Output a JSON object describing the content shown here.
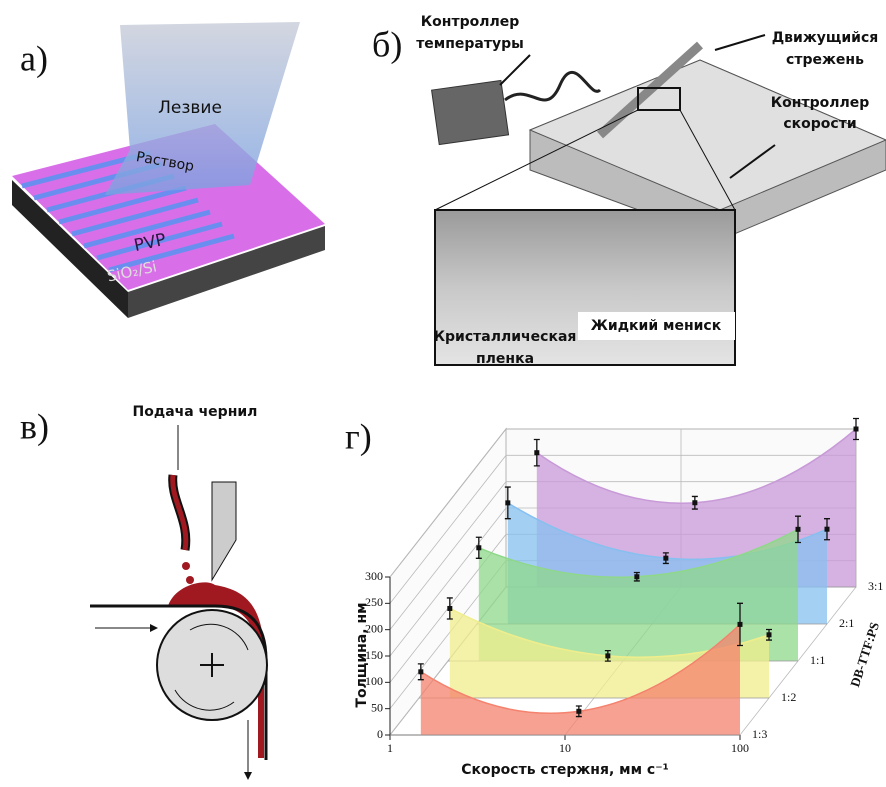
{
  "panel_labels": [
    "а)",
    "б)",
    "в)",
    "г)"
  ],
  "panel_a": {
    "blade": "Лезвие",
    "solution": "Раствор",
    "layer": "PVP",
    "substrate": "SiO₂/Si"
  },
  "panel_b": {
    "temperature_controller": [
      "Контроллер",
      "температуры"
    ],
    "moving_rod": [
      "Движущийся",
      "стрежень"
    ],
    "speed_controller": [
      "Контроллер",
      "скорости"
    ],
    "meniscus": "Жидкий мениск",
    "crystal_film": [
      "Кристаллическая",
      "пленка"
    ]
  },
  "panel_c": {
    "ink_feed": "Подача чернил"
  },
  "chart_data": {
    "type": "line3d",
    "xlabel": "Скорость стержня, мм с⁻¹",
    "ylabel": "Толщина, нм",
    "zlabel": "DB-TTF:PS",
    "x": [
      1.5,
      12,
      100
    ],
    "xscale": "log",
    "xlim": [
      1,
      100
    ],
    "xticks": [
      1,
      10,
      100
    ],
    "ylim": [
      0,
      300
    ],
    "yticks": [
      0,
      50,
      100,
      150,
      200,
      250,
      300
    ],
    "grid": true,
    "series": [
      {
        "name": "1:3",
        "color": "#f4826e",
        "values": [
          120,
          45,
          210
        ],
        "errors": [
          15,
          10,
          40
        ]
      },
      {
        "name": "1:2",
        "color": "#f0ee8c",
        "values": [
          170,
          80,
          120
        ],
        "errors": [
          20,
          10,
          10
        ]
      },
      {
        "name": "1:1",
        "color": "#8fd88a",
        "values": [
          215,
          160,
          250
        ],
        "errors": [
          20,
          8,
          25
        ]
      },
      {
        "name": "2:1",
        "color": "#86c0f0",
        "values": [
          230,
          125,
          180
        ],
        "errors": [
          30,
          10,
          20
        ]
      },
      {
        "name": "3:1",
        "color": "#c89ad8",
        "values": [
          255,
          160,
          300
        ],
        "errors": [
          25,
          12,
          20
        ]
      }
    ]
  }
}
